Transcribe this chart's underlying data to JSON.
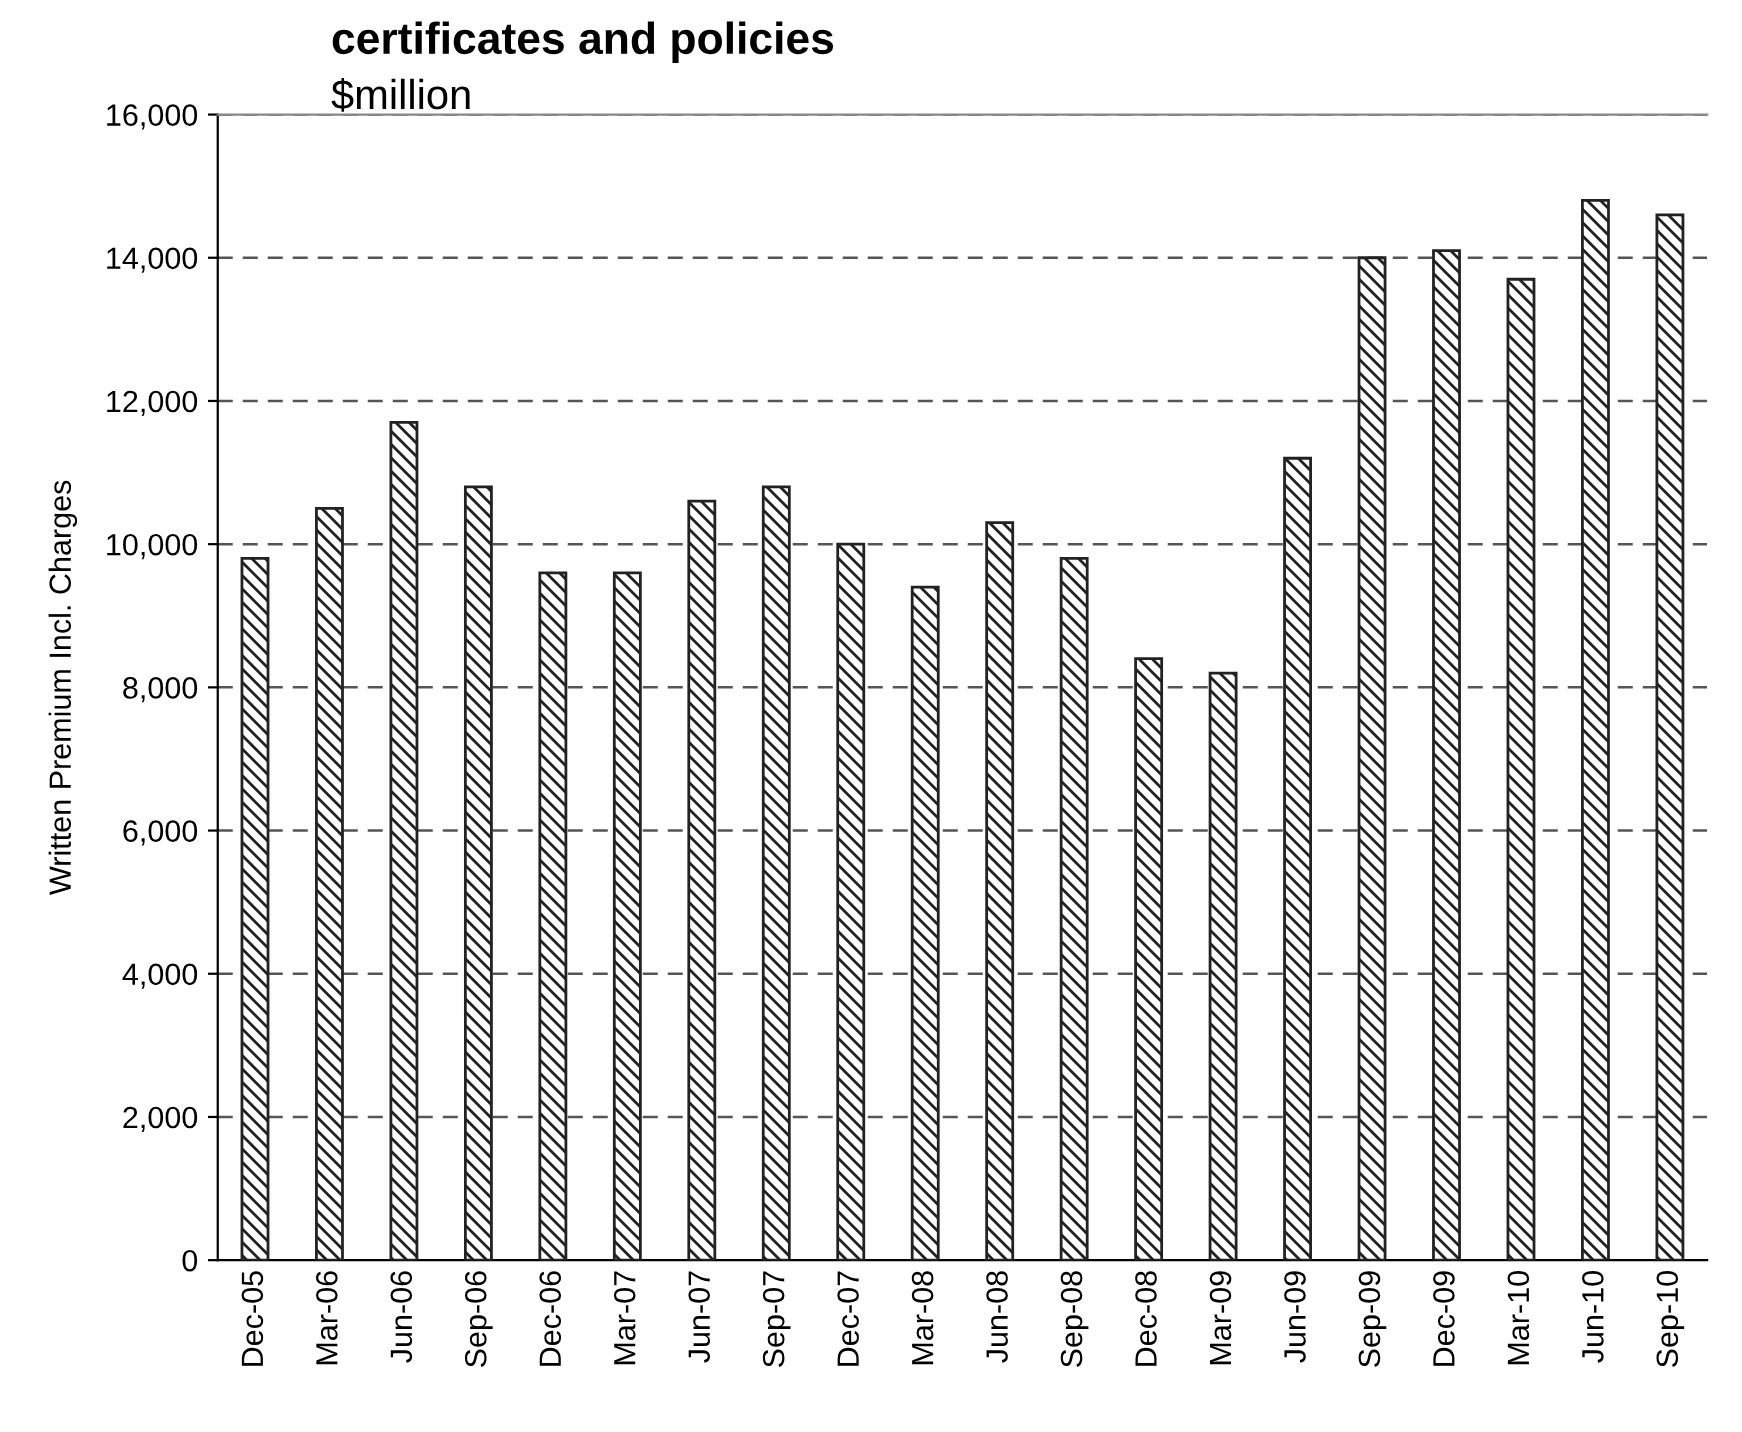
{
  "chart_data": {
    "type": "bar",
    "title": "certificates and policies",
    "subtitle": "$million",
    "ylabel": "Written Premium Incl. Charges",
    "categories": [
      "Dec-05",
      "Mar-06",
      "Jun-06",
      "Sep-06",
      "Dec-06",
      "Mar-07",
      "Jun-07",
      "Sep-07",
      "Dec-07",
      "Mar-08",
      "Jun-08",
      "Sep-08",
      "Dec-08",
      "Mar-09",
      "Jun-09",
      "Sep-09",
      "Dec-09",
      "Mar-10",
      "Jun-10",
      "Sep-10"
    ],
    "values": [
      9800,
      10500,
      11700,
      10800,
      9600,
      9600,
      10600,
      10800,
      10000,
      9400,
      10300,
      9800,
      8400,
      8200,
      11200,
      14000,
      14100,
      13700,
      14800,
      14600
    ],
    "color": "#222222",
    "ylim": [
      0,
      16000
    ],
    "yticks": [
      0,
      {
        "value": 2000,
        "label": "2,000"
      },
      {
        "value": 4000,
        "label": "4,000"
      },
      {
        "value": 6000,
        "label": "6,000"
      },
      {
        "value": 8000,
        "label": "8,000"
      },
      {
        "value": 10000,
        "label": "10,000"
      },
      {
        "value": 12000,
        "label": "12,000"
      },
      {
        "value": 14000,
        "label": "14,000"
      },
      {
        "value": 16000,
        "label": "16,000"
      }
    ],
    "grid": "y",
    "line_style": "dashed",
    "legend": false
  }
}
